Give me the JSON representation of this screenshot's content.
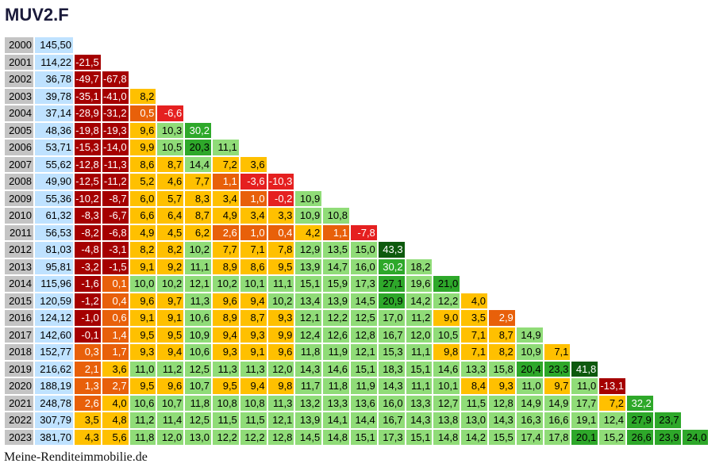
{
  "title": "MUV2.F",
  "footer": "Meine-Renditeimmobilie.de",
  "rows": [
    {
      "year": "2000",
      "price": "145,50",
      "returns": []
    },
    {
      "year": "2001",
      "price": "114,22",
      "returns": [
        "-21,5"
      ]
    },
    {
      "year": "2002",
      "price": "36,78",
      "returns": [
        "-49,7",
        "-67,8"
      ]
    },
    {
      "year": "2003",
      "price": "39,78",
      "returns": [
        "-35,1",
        "-41,0",
        "8,2"
      ]
    },
    {
      "year": "2004",
      "price": "37,14",
      "returns": [
        "-28,9",
        "-31,2",
        "0,5",
        "-6,6"
      ]
    },
    {
      "year": "2005",
      "price": "48,36",
      "returns": [
        "-19,8",
        "-19,3",
        "9,6",
        "10,3",
        "30,2"
      ]
    },
    {
      "year": "2006",
      "price": "53,71",
      "returns": [
        "-15,3",
        "-14,0",
        "9,9",
        "10,5",
        "20,3",
        "11,1"
      ]
    },
    {
      "year": "2007",
      "price": "55,62",
      "returns": [
        "-12,8",
        "-11,3",
        "8,6",
        "8,7",
        "14,4",
        "7,2",
        "3,6"
      ]
    },
    {
      "year": "2008",
      "price": "49,90",
      "returns": [
        "-12,5",
        "-11,2",
        "5,2",
        "4,6",
        "7,7",
        "1,1",
        "-3,6",
        "-10,3"
      ]
    },
    {
      "year": "2009",
      "price": "55,36",
      "returns": [
        "-10,2",
        "-8,7",
        "6,0",
        "5,7",
        "8,3",
        "3,4",
        "1,0",
        "-0,2",
        "10,9"
      ]
    },
    {
      "year": "2010",
      "price": "61,32",
      "returns": [
        "-8,3",
        "-6,7",
        "6,6",
        "6,4",
        "8,7",
        "4,9",
        "3,4",
        "3,3",
        "10,9",
        "10,8"
      ]
    },
    {
      "year": "2011",
      "price": "56,53",
      "returns": [
        "-8,2",
        "-6,8",
        "4,9",
        "4,5",
        "6,2",
        "2,6",
        "1,0",
        "0,4",
        "4,2",
        "1,1",
        "-7,8"
      ]
    },
    {
      "year": "2012",
      "price": "81,03",
      "returns": [
        "-4,8",
        "-3,1",
        "8,2",
        "8,2",
        "10,2",
        "7,7",
        "7,1",
        "7,8",
        "12,9",
        "13,5",
        "15,0",
        "43,3"
      ]
    },
    {
      "year": "2013",
      "price": "95,81",
      "returns": [
        "-3,2",
        "-1,5",
        "9,1",
        "9,2",
        "11,1",
        "8,9",
        "8,6",
        "9,5",
        "13,9",
        "14,7",
        "16,0",
        "30,2",
        "18,2"
      ]
    },
    {
      "year": "2014",
      "price": "115,96",
      "returns": [
        "-1,6",
        "0,1",
        "10,0",
        "10,2",
        "12,1",
        "10,2",
        "10,1",
        "11,1",
        "15,1",
        "15,9",
        "17,3",
        "27,1",
        "19,6",
        "21,0"
      ]
    },
    {
      "year": "2015",
      "price": "120,59",
      "returns": [
        "-1,2",
        "0,4",
        "9,6",
        "9,7",
        "11,3",
        "9,6",
        "9,4",
        "10,2",
        "13,4",
        "13,9",
        "14,5",
        "20,9",
        "14,2",
        "12,2",
        "4,0"
      ]
    },
    {
      "year": "2016",
      "price": "124,12",
      "returns": [
        "-1,0",
        "0,6",
        "9,1",
        "9,1",
        "10,6",
        "8,9",
        "8,7",
        "9,3",
        "12,1",
        "12,2",
        "12,5",
        "17,0",
        "11,2",
        "9,0",
        "3,5",
        "2,9"
      ]
    },
    {
      "year": "2017",
      "price": "142,60",
      "returns": [
        "-0,1",
        "1,4",
        "9,5",
        "9,5",
        "10,9",
        "9,4",
        "9,3",
        "9,9",
        "12,4",
        "12,6",
        "12,8",
        "16,7",
        "12,0",
        "10,5",
        "7,1",
        "8,7",
        "14,9"
      ]
    },
    {
      "year": "2018",
      "price": "152,77",
      "returns": [
        "0,3",
        "1,7",
        "9,3",
        "9,4",
        "10,6",
        "9,3",
        "9,1",
        "9,6",
        "11,8",
        "11,9",
        "12,1",
        "15,3",
        "11,1",
        "9,8",
        "7,1",
        "8,2",
        "10,9",
        "7,1"
      ]
    },
    {
      "year": "2019",
      "price": "216,62",
      "returns": [
        "2,1",
        "3,6",
        "11,0",
        "11,2",
        "12,5",
        "11,3",
        "11,3",
        "12,0",
        "14,3",
        "14,6",
        "15,1",
        "18,3",
        "15,1",
        "14,6",
        "13,3",
        "15,8",
        "20,4",
        "23,3",
        "41,8"
      ]
    },
    {
      "year": "2020",
      "price": "188,19",
      "returns": [
        "1,3",
        "2,7",
        "9,5",
        "9,6",
        "10,7",
        "9,5",
        "9,4",
        "9,8",
        "11,7",
        "11,8",
        "11,9",
        "14,3",
        "11,1",
        "10,1",
        "8,4",
        "9,3",
        "11,0",
        "9,7",
        "11,0",
        "-13,1"
      ]
    },
    {
      "year": "2021",
      "price": "248,78",
      "returns": [
        "2,6",
        "4,0",
        "10,6",
        "10,7",
        "11,8",
        "10,8",
        "10,8",
        "11,3",
        "13,2",
        "13,3",
        "13,6",
        "16,0",
        "13,3",
        "12,7",
        "11,5",
        "12,8",
        "14,9",
        "14,9",
        "17,7",
        "7,2",
        "32,2"
      ]
    },
    {
      "year": "2022",
      "price": "307,79",
      "returns": [
        "3,5",
        "4,8",
        "11,2",
        "11,4",
        "12,5",
        "11,5",
        "11,5",
        "12,1",
        "13,9",
        "14,1",
        "14,4",
        "16,7",
        "14,3",
        "13,8",
        "13,0",
        "14,3",
        "16,3",
        "16,6",
        "19,1",
        "12,4",
        "27,9",
        "23,7"
      ]
    },
    {
      "year": "2023",
      "price": "381,70",
      "returns": [
        "4,3",
        "5,6",
        "11,8",
        "12,0",
        "13,0",
        "12,2",
        "12,2",
        "12,8",
        "14,5",
        "14,8",
        "15,1",
        "17,3",
        "15,1",
        "14,8",
        "14,2",
        "15,5",
        "17,4",
        "17,8",
        "20,1",
        "15,2",
        "26,6",
        "23,9",
        "24,0"
      ]
    }
  ]
}
